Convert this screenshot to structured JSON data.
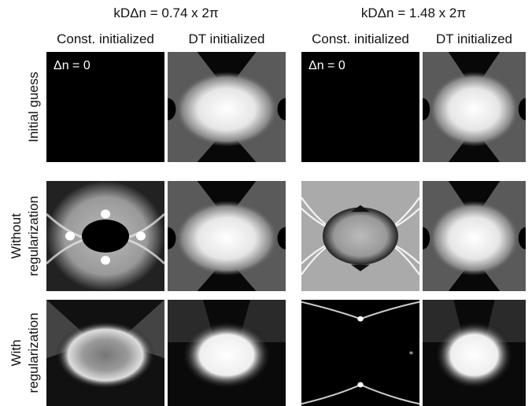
{
  "column_groups": [
    {
      "title": "kDΔn = 0.74 x 2π",
      "subtitles": [
        "Const. initialized",
        "DT initialized"
      ]
    },
    {
      "title": "kDΔn = 1.48 x 2π",
      "subtitles": [
        "Const. initialized",
        "DT initialized"
      ]
    }
  ],
  "rows": [
    {
      "label_lines": [
        "Initial guess"
      ]
    },
    {
      "label_lines": [
        "Without",
        "regularization"
      ]
    },
    {
      "label_lines": [
        "With",
        "regularization"
      ]
    }
  ],
  "panel_labels": [
    "Δn = 0",
    "Δn = 0"
  ]
}
